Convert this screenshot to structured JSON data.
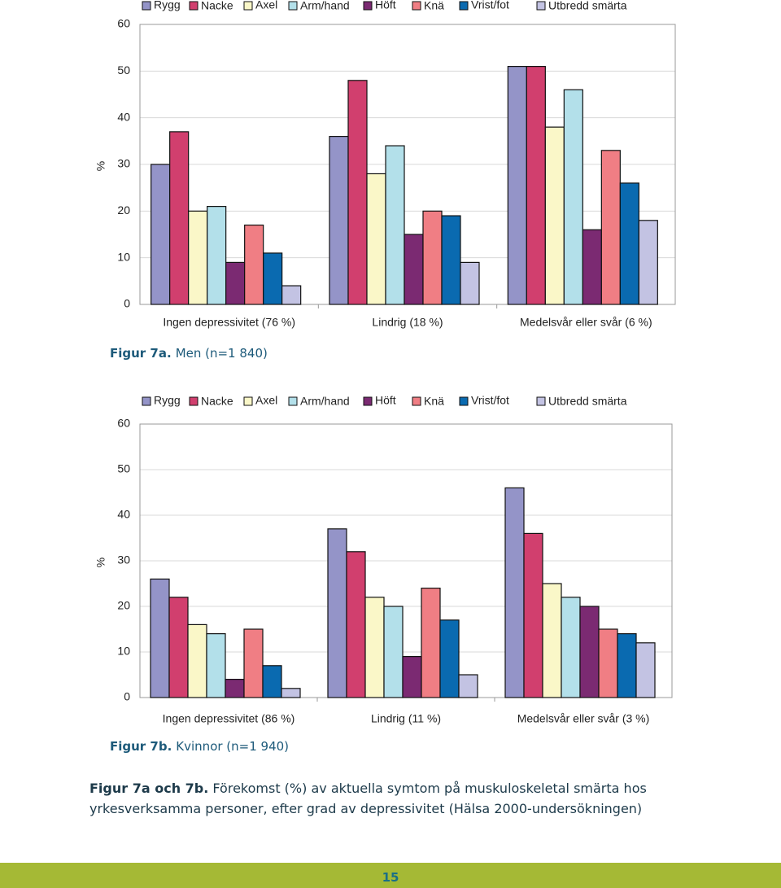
{
  "chart_data": [
    {
      "type": "bar",
      "figure_label": "Figur 7a.",
      "title": "Men (n=1 840)",
      "y_label": "%",
      "categories": [
        "Ingen depressivitet (76 %)",
        "Lindrig (18 %)",
        "Medelsvår eller svår (6 %)"
      ],
      "ylim": [
        0,
        60
      ],
      "yticks": [
        0,
        10,
        20,
        30,
        40,
        50,
        60
      ],
      "grid": true,
      "series": [
        {
          "name": "Rygg",
          "color": "#9494c8",
          "values": [
            30,
            36,
            51
          ]
        },
        {
          "name": "Nacke",
          "color": "#d13f6e",
          "values": [
            37,
            48,
            51
          ]
        },
        {
          "name": "Axel",
          "color": "#faf7c8",
          "values": [
            20,
            28,
            38
          ]
        },
        {
          "name": "Arm/hand",
          "color": "#b3e0ea",
          "values": [
            21,
            34,
            46
          ]
        },
        {
          "name": "Höft",
          "color": "#7b2a72",
          "values": [
            9,
            15,
            16
          ]
        },
        {
          "name": "Knä",
          "color": "#f07e84",
          "values": [
            17,
            20,
            33
          ]
        },
        {
          "name": "Vrist/fot",
          "color": "#0a6ab0",
          "values": [
            11,
            19,
            26
          ]
        },
        {
          "name": "Utbredd smärta",
          "color": "#c3c3e3",
          "values": [
            4,
            9,
            18
          ]
        }
      ]
    },
    {
      "type": "bar",
      "figure_label": "Figur 7b.",
      "title": "Kvinnor (n=1 940)",
      "y_label": "%",
      "categories": [
        "Ingen depressivitet (86 %)",
        "Lindrig (11 %)",
        "Medelsvår eller svår (3 %)"
      ],
      "ylim": [
        0,
        60
      ],
      "yticks": [
        0,
        10,
        20,
        30,
        40,
        50,
        60
      ],
      "grid": true,
      "series": [
        {
          "name": "Rygg",
          "color": "#9494c8",
          "values": [
            26,
            37,
            46
          ]
        },
        {
          "name": "Nacke",
          "color": "#d13f6e",
          "values": [
            22,
            32,
            36
          ]
        },
        {
          "name": "Axel",
          "color": "#faf7c8",
          "values": [
            16,
            22,
            25
          ]
        },
        {
          "name": "Arm/hand",
          "color": "#b3e0ea",
          "values": [
            14,
            20,
            22
          ]
        },
        {
          "name": "Höft",
          "color": "#7b2a72",
          "values": [
            4,
            9,
            20
          ]
        },
        {
          "name": "Knä",
          "color": "#f07e84",
          "values": [
            15,
            24,
            15
          ]
        },
        {
          "name": "Vrist/fot",
          "color": "#0a6ab0",
          "values": [
            7,
            17,
            14
          ]
        },
        {
          "name": "Utbredd smärta",
          "color": "#c3c3e3",
          "values": [
            2,
            5,
            12
          ]
        }
      ]
    }
  ],
  "caption": {
    "label": "Figur 7a och 7b.",
    "text": "Förekomst (%) av aktuella symtom på muskuloskeletal smärta hos yrkesverksamma personer, efter grad av depressivitet (Hälsa 2000-undersökningen)"
  },
  "page_number": "15"
}
